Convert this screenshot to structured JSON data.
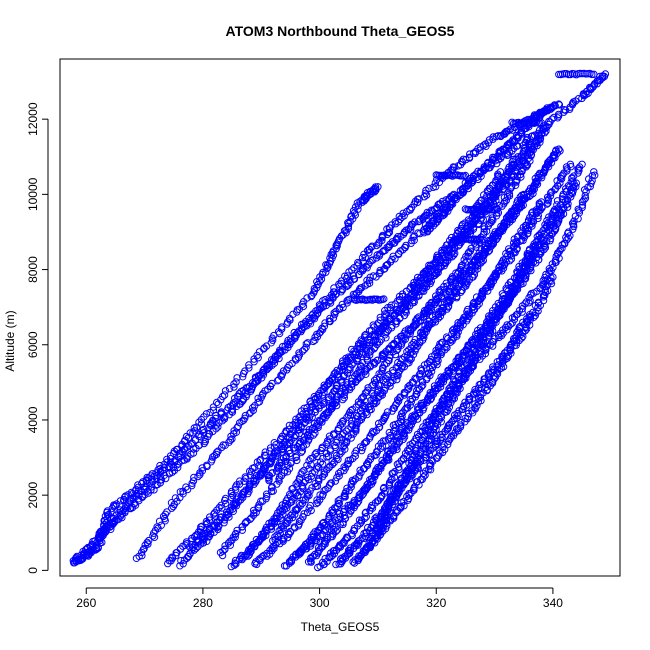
{
  "chart_data": {
    "type": "scatter",
    "title": "ATOM3 Northbound Theta_GEOS5",
    "xlabel": "Theta_GEOS5",
    "ylabel": "Altitude (m)",
    "xlim": [
      255.5,
      351.5
    ],
    "ylim": [
      -150,
      13600
    ],
    "xticks": [
      260,
      280,
      300,
      320,
      340
    ],
    "yticks": [
      0,
      2000,
      4000,
      6000,
      8000,
      10000,
      12000
    ],
    "marker": "open-circle",
    "point_color": "#0000ff",
    "grid": false,
    "legend": "none",
    "series": [
      {
        "x": [
          258,
          262,
          264,
          272,
          280,
          290,
          299,
          303,
          307,
          310
        ],
        "y": [
          200,
          600,
          1600,
          2600,
          4000,
          5800,
          7400,
          8600,
          9800,
          10200
        ]
      },
      {
        "x": [
          258,
          263,
          270,
          278,
          286,
          292,
          300,
          308,
          314,
          322,
          330,
          336,
          341
        ],
        "y": [
          250,
          1000,
          2000,
          3100,
          4400,
          5600,
          7000,
          8400,
          9400,
          10600,
          11500,
          12000,
          12400
        ]
      },
      {
        "x": [
          269,
          275,
          283,
          290,
          298,
          305,
          312,
          320,
          328,
          337,
          345,
          349
        ],
        "y": [
          300,
          1800,
          3200,
          4600,
          6000,
          7200,
          8200,
          9400,
          10600,
          11600,
          12600,
          13200
        ]
      },
      {
        "x": [
          274,
          281,
          288,
          296,
          304,
          311,
          318,
          325,
          331,
          336
        ],
        "y": [
          200,
          1300,
          2600,
          4000,
          5500,
          6800,
          7900,
          9000,
          10200,
          11400
        ]
      },
      {
        "x": [
          276,
          283,
          291,
          298,
          305,
          313,
          320,
          327,
          333,
          339
        ],
        "y": [
          150,
          1200,
          2800,
          4200,
          5600,
          6800,
          7900,
          9200,
          10500,
          11800
        ]
      },
      {
        "x": [
          285,
          291,
          297,
          304,
          311,
          318,
          324,
          330,
          336,
          341
        ],
        "y": [
          100,
          1000,
          2200,
          3600,
          5000,
          6400,
          7600,
          8800,
          10000,
          11200
        ]
      },
      {
        "x": [
          289,
          295,
          302,
          309,
          315,
          321,
          327,
          333,
          338,
          343
        ],
        "y": [
          150,
          1000,
          2300,
          3600,
          4800,
          6000,
          7200,
          8400,
          9600,
          10800
        ]
      },
      {
        "x": [
          294,
          300,
          307,
          313,
          318,
          324,
          330,
          335,
          340,
          345
        ],
        "y": [
          120,
          900,
          2000,
          3200,
          4400,
          5600,
          6900,
          8200,
          9500,
          10800
        ]
      },
      {
        "x": [
          298,
          303,
          309,
          314,
          320,
          326,
          332,
          337,
          341,
          344
        ],
        "y": [
          200,
          1100,
          2400,
          3700,
          4900,
          6000,
          7100,
          8200,
          9300,
          10300
        ]
      },
      {
        "x": [
          300,
          305,
          311,
          316,
          322,
          327,
          333,
          339,
          343,
          347
        ],
        "y": [
          100,
          900,
          2100,
          3400,
          4600,
          5600,
          6600,
          7800,
          9000,
          10600
        ]
      },
      {
        "x": [
          287,
          293,
          299,
          306,
          312,
          318,
          324,
          329,
          334,
          338
        ],
        "y": [
          300,
          1500,
          3000,
          4300,
          5600,
          6900,
          8000,
          9200,
          10400,
          11600
        ]
      },
      {
        "x": [
          283,
          289,
          296,
          303,
          310,
          317,
          323,
          329,
          334
        ],
        "y": [
          400,
          1600,
          3000,
          4600,
          6000,
          7300,
          8600,
          9800,
          11000
        ]
      },
      {
        "x": [
          303,
          307,
          312,
          317,
          322,
          327,
          332,
          336
        ],
        "y": [
          150,
          800,
          1800,
          2800,
          3800,
          4800,
          5800,
          6800
        ]
      },
      {
        "x": [
          306,
          310,
          315,
          320,
          326,
          331,
          336,
          340
        ],
        "y": [
          200,
          900,
          1900,
          3000,
          4200,
          5400,
          6600,
          7800
        ]
      },
      {
        "x": [
          292,
          297,
          303,
          308,
          314,
          319,
          325,
          330,
          335
        ],
        "y": [
          800,
          1800,
          3000,
          4200,
          5300,
          6500,
          7600,
          8800,
          10000
        ]
      },
      {
        "x": [
          308,
          311,
          315,
          319,
          323,
          328,
          333,
          337
        ],
        "y": [
          500,
          1500,
          2700,
          3900,
          5000,
          6200,
          7400,
          8600
        ]
      },
      {
        "x": [
          278,
          284,
          290,
          297,
          303,
          309,
          315,
          320,
          326,
          331
        ],
        "y": [
          600,
          1500,
          2600,
          3800,
          4900,
          6100,
          7200,
          8300,
          9400,
          10600
        ]
      },
      {
        "x": [
          296,
          301,
          306,
          312,
          317,
          322,
          328,
          333,
          338
        ],
        "y": [
          400,
          1300,
          2400,
          3600,
          4800,
          6000,
          7300,
          8600,
          9800
        ]
      },
      {
        "x": [
          310,
          313,
          317,
          321,
          325,
          329,
          333,
          337,
          341
        ],
        "y": [
          1000,
          2000,
          3000,
          4100,
          5200,
          6300,
          7400,
          8500,
          9600
        ]
      },
      {
        "x": [
          262,
          268,
          275,
          282,
          290,
          297,
          304,
          311,
          317,
          323
        ],
        "y": [
          900,
          1900,
          2900,
          4000,
          5200,
          6400,
          7500,
          8500,
          9300,
          10000
        ]
      },
      {
        "x": [
          318,
          322,
          326,
          331,
          335,
          339
        ],
        "y": [
          9000,
          9600,
          10400,
          11100,
          11700,
          12300
        ]
      },
      {
        "x": [
          291,
          296,
          302,
          308,
          314,
          320,
          326,
          331,
          336,
          341
        ],
        "y": [
          2400,
          3300,
          4300,
          5300,
          6200,
          7100,
          8100,
          9100,
          10100,
          11200
        ]
      }
    ],
    "flat_segments": [
      {
        "x": [
          320,
          325
        ],
        "y": 10500
      },
      {
        "x": [
          323,
          328
        ],
        "y": 8800
      },
      {
        "x": [
          306,
          311
        ],
        "y": 7200
      },
      {
        "x": [
          341,
          347
        ],
        "y": 13200
      },
      {
        "x": [
          333,
          338
        ],
        "y": 11900
      },
      {
        "x": [
          325,
          330
        ],
        "y": 9600
      }
    ]
  }
}
